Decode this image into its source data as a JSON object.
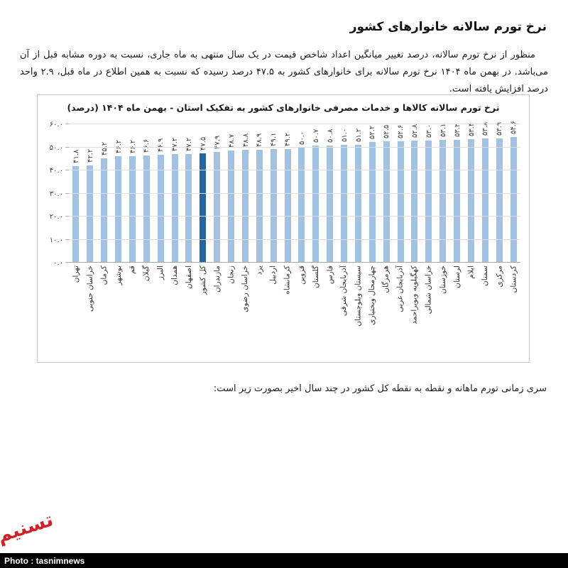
{
  "page": {
    "title": "نرخ تورم سالانه خانوارهای کشور",
    "paragraph": "منظور از نرخ تورم سالانه، درصد تغییر میانگین اعداد شاخص قیمت در یک سال منتهی به ماه جاری، نسبت به دوره مشابه قبل از آن می‌باشد. در بهمن ماه ۱۴۰۴ نرخ تورم سالانه برای خانوارهای کشور به ۴۷.۵ درصد رسیده که نسبت به همین اطلاع در ماه قبل، ۲.۹ واحد درصد افزایش یافته است.",
    "bottom_note": "سری زمانی تورم ماهانه و نقطه به نقطه کل کشور در چند سال اخیر بصورت زیر است:",
    "credit": "Photo : tasnimnews",
    "logo_text": "تسنیم"
  },
  "chart_data": {
    "type": "bar",
    "title": "نرخ تورم سالانه کالاها و خدمات مصرفی خانوارهای کشور به تفکیک استان - بهمن ماه ۱۴۰۴ (درصد)",
    "xlabel": "",
    "ylabel": "",
    "ylim": [
      0,
      60
    ],
    "grid": true,
    "bar_color": "#a1c2e2",
    "highlight_color": "#2165a5",
    "highlight_category": "کل کشور",
    "y_ticks": [
      0,
      10,
      20,
      30,
      40,
      50,
      60
    ],
    "y_tick_labels": [
      "۰.۰",
      "۱۰.۰",
      "۲۰.۰",
      "۳۰.۰",
      "۴۰.۰",
      "۵۰.۰",
      "۶۰.۰"
    ],
    "categories": [
      "تهران",
      "خراسان جنوبی",
      "کرمان",
      "بوشهر",
      "قم",
      "گیلان",
      "البرز",
      "همدان",
      "اصفهان",
      "کل کشور",
      "مازندران",
      "زنجان",
      "خراسان رضوی",
      "یزد",
      "اردبیل",
      "کرمانشاه",
      "قزوین",
      "گلستان",
      "فارس",
      "آذربایجان شرقی",
      "سیستان وبلوچستان",
      "چهارمحال وبختیاری",
      "هرمزگان",
      "آذربایجان غربی",
      "کهگیلویه وبویراحمد",
      "خراسان شمالی",
      "خوزستان",
      "لرستان",
      "ایلام",
      "سمنان",
      "مرکزی",
      "کردستان"
    ],
    "values": [
      41.8,
      42.2,
      45.2,
      46.2,
      46.2,
      46.6,
      46.9,
      47.2,
      47.2,
      47.5,
      47.9,
      48.7,
      48.8,
      48.9,
      49.1,
      49.2,
      50.0,
      50.7,
      50.8,
      51.0,
      51.2,
      52.2,
      52.5,
      52.6,
      52.8,
      53.0,
      53.1,
      53.2,
      53.4,
      53.8,
      53.9,
      54.6
    ],
    "value_labels": [
      "۴۱.۸",
      "۴۲.۲",
      "۴۵.۲",
      "۴۶.۲",
      "۴۶.۲",
      "۴۶.۶",
      "۴۶.۹",
      "۴۷.۲",
      "۴۷.۲",
      "۴۷.۵",
      "۴۷.۹",
      "۴۸.۷",
      "۴۸.۸",
      "۴۸.۹",
      "۴۹.۱",
      "۴۹.۲",
      "۵۰.۰",
      "۵۰.۷",
      "۵۰.۸",
      "۵۱.۰",
      "۵۱.۲",
      "۵۲.۲",
      "۵۲.۵",
      "۵۲.۶",
      "۵۲.۸",
      "۵۳.۰",
      "۵۳.۱",
      "۵۳.۲",
      "۵۳.۴",
      "۵۳.۸",
      "۵۳.۹",
      "۵۴.۶"
    ]
  }
}
